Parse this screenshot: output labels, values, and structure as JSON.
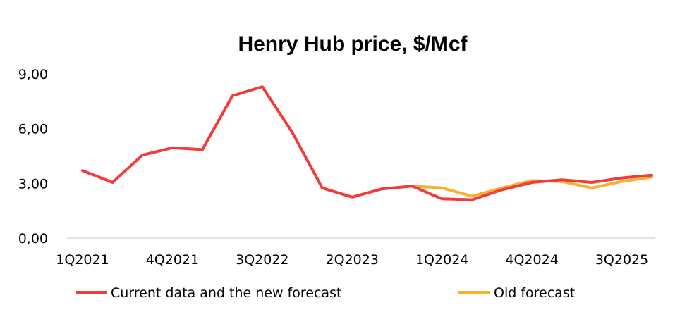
{
  "chart_data": {
    "type": "line",
    "title": "Henry Hub price, $/Mcf",
    "xlabel": "",
    "ylabel": "",
    "ylim": [
      0,
      9
    ],
    "yticks": [
      "0,00",
      "3,00",
      "6,00",
      "9,00"
    ],
    "ytick_values": [
      0,
      3,
      6,
      9
    ],
    "categories": [
      "1Q2021",
      "2Q2021",
      "3Q2021",
      "4Q2021",
      "1Q2022",
      "2Q2022",
      "3Q2022",
      "4Q2022",
      "1Q2023",
      "2Q2023",
      "3Q2023",
      "4Q2023",
      "1Q2024",
      "2Q2024",
      "3Q2024",
      "4Q2024",
      "1Q2025",
      "2Q2025",
      "3Q2025",
      "4Q2025"
    ],
    "shown_tick_labels": [
      "1Q2021",
      "4Q2021",
      "3Q2022",
      "2Q2023",
      "1Q2024",
      "4Q2024",
      "3Q2025"
    ],
    "grid": false,
    "legend_position": "bottom",
    "series": [
      {
        "name": "Current data and the new forecast",
        "color": "#f23c3c",
        "values": [
          3.7,
          3.05,
          4.55,
          4.95,
          4.85,
          7.8,
          8.3,
          5.8,
          2.75,
          2.25,
          2.7,
          2.85,
          2.15,
          2.1,
          2.65,
          3.05,
          3.2,
          3.05,
          3.3,
          3.45
        ]
      },
      {
        "name": "Old forecast",
        "color": "#f7b030",
        "values": [
          null,
          null,
          null,
          null,
          null,
          null,
          null,
          null,
          null,
          null,
          null,
          2.85,
          2.75,
          2.3,
          2.75,
          3.15,
          3.1,
          2.75,
          3.1,
          3.35
        ]
      }
    ]
  }
}
